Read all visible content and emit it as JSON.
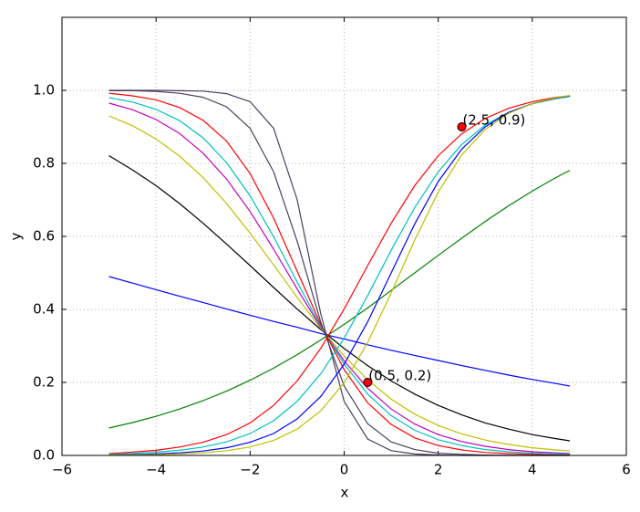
{
  "chart_data": {
    "type": "line",
    "x_label": "x",
    "y_label": "y",
    "x": [
      -5,
      -4.5,
      -4,
      -3.5,
      -3,
      -2.5,
      -2,
      -1.5,
      -1,
      -0.5,
      0,
      0.5,
      1,
      1.5,
      2,
      2.5,
      3,
      3.5,
      4,
      4.5,
      4.8
    ],
    "xlim": [
      -6,
      6
    ],
    "xticks": [
      {
        "value": -6,
        "label": "−6"
      },
      {
        "value": -4,
        "label": "−4"
      },
      {
        "value": -2,
        "label": "−2"
      },
      0,
      2,
      4,
      6
    ],
    "ylim": [
      0,
      1.2
    ],
    "yticks": [
      {
        "value": 0,
        "label": "0.0"
      },
      {
        "value": 0.2,
        "label": "0.2"
      },
      {
        "value": 0.4,
        "label": "0.4"
      },
      {
        "value": 0.6,
        "label": "0.6"
      },
      {
        "value": 0.8,
        "label": "0.8"
      },
      {
        "value": 1,
        "label": "1.0"
      }
    ],
    "grid": true,
    "series": [
      {
        "color": "#0000ff",
        "values": [
          0.49,
          0.472,
          0.454,
          0.436,
          0.419,
          0.401,
          0.384,
          0.367,
          0.351,
          0.334,
          0.319,
          0.303,
          0.288,
          0.274,
          0.26,
          0.246,
          0.233,
          0.22,
          0.208,
          0.197,
          0.19
        ]
      },
      {
        "color": "#000000",
        "values": [
          0.821,
          0.782,
          0.739,
          0.69,
          0.636,
          0.579,
          0.52,
          0.46,
          0.401,
          0.345,
          0.293,
          0.246,
          0.204,
          0.168,
          0.137,
          0.111,
          0.089,
          0.072,
          0.057,
          0.046,
          0.04
        ]
      },
      {
        "color": "#bfbf00",
        "values": [
          0.93,
          0.903,
          0.867,
          0.82,
          0.761,
          0.69,
          0.609,
          0.522,
          0.433,
          0.348,
          0.272,
          0.207,
          0.154,
          0.113,
          0.082,
          0.059,
          0.042,
          0.03,
          0.021,
          0.015,
          0.012
        ]
      },
      {
        "color": "#bf00bf",
        "values": [
          0.965,
          0.947,
          0.92,
          0.882,
          0.828,
          0.757,
          0.668,
          0.565,
          0.456,
          0.351,
          0.259,
          0.184,
          0.127,
          0.086,
          0.057,
          0.038,
          0.025,
          0.016,
          0.01,
          0.007,
          0.005
        ]
      },
      {
        "color": "#00bfbf",
        "values": [
          0.98,
          0.968,
          0.948,
          0.917,
          0.87,
          0.802,
          0.711,
          0.599,
          0.475,
          0.354,
          0.25,
          0.168,
          0.109,
          0.069,
          0.043,
          0.027,
          0.016,
          0.01,
          0.006,
          0.004,
          0.003
        ]
      },
      {
        "color": "#ff0000",
        "values": [
          0.992,
          0.985,
          0.974,
          0.953,
          0.918,
          0.861,
          0.772,
          0.65,
          0.505,
          0.359,
          0.235,
          0.144,
          0.085,
          0.048,
          0.027,
          0.015,
          0.008,
          0.005,
          0.003,
          0.001,
          0.001
        ]
      },
      {
        "color": "#4b3f5f",
        "values": [
          0.999,
          0.999,
          0.997,
          0.992,
          0.981,
          0.955,
          0.896,
          0.777,
          0.587,
          0.366,
          0.19,
          0.087,
          0.037,
          0.016,
          0.006,
          0.003,
          0.001,
          0,
          0,
          0,
          0
        ]
      },
      {
        "color": "#4b3f5f",
        "values": [
          1,
          1,
          1,
          0.999,
          0.998,
          0.991,
          0.969,
          0.896,
          0.701,
          0.389,
          0.148,
          0.045,
          0.013,
          0.004,
          0.001,
          0,
          0,
          0,
          0,
          0,
          0
        ]
      },
      {
        "color": "#008000",
        "values": [
          0.075,
          0.09,
          0.107,
          0.127,
          0.15,
          0.176,
          0.206,
          0.239,
          0.276,
          0.316,
          0.359,
          0.404,
          0.452,
          0.5,
          0.548,
          0.595,
          0.641,
          0.684,
          0.724,
          0.761,
          0.781
        ]
      },
      {
        "color": "#ff0000",
        "values": [
          0.005,
          0.009,
          0.014,
          0.023,
          0.036,
          0.057,
          0.089,
          0.137,
          0.204,
          0.293,
          0.401,
          0.52,
          0.636,
          0.739,
          0.821,
          0.881,
          0.923,
          0.951,
          0.969,
          0.981,
          0.985
        ]
      },
      {
        "color": "#00bfbf",
        "values": [
          0.003,
          0.005,
          0.009,
          0.014,
          0.023,
          0.037,
          0.06,
          0.095,
          0.148,
          0.223,
          0.321,
          0.438,
          0.562,
          0.679,
          0.777,
          0.852,
          0.905,
          0.94,
          0.963,
          0.977,
          0.983
        ]
      },
      {
        "color": "#0000ff",
        "values": [
          0.001,
          0.002,
          0.004,
          0.007,
          0.012,
          0.021,
          0.036,
          0.06,
          0.1,
          0.161,
          0.25,
          0.366,
          0.5,
          0.634,
          0.75,
          0.839,
          0.9,
          0.94,
          0.964,
          0.979,
          0.985
        ]
      },
      {
        "color": "#bfbf00",
        "values": [
          0.001,
          0.001,
          0.002,
          0.004,
          0.007,
          0.013,
          0.023,
          0.041,
          0.072,
          0.122,
          0.199,
          0.309,
          0.445,
          0.59,
          0.721,
          0.823,
          0.893,
          0.937,
          0.964,
          0.98,
          0.986
        ]
      }
    ],
    "points": [
      {
        "x": 2.5,
        "y": 0.9,
        "label": "(2.5, 0.9)"
      },
      {
        "x": 0.5,
        "y": 0.2,
        "label": "(0.5, 0.2)"
      }
    ],
    "point_color": "#ff0000"
  }
}
